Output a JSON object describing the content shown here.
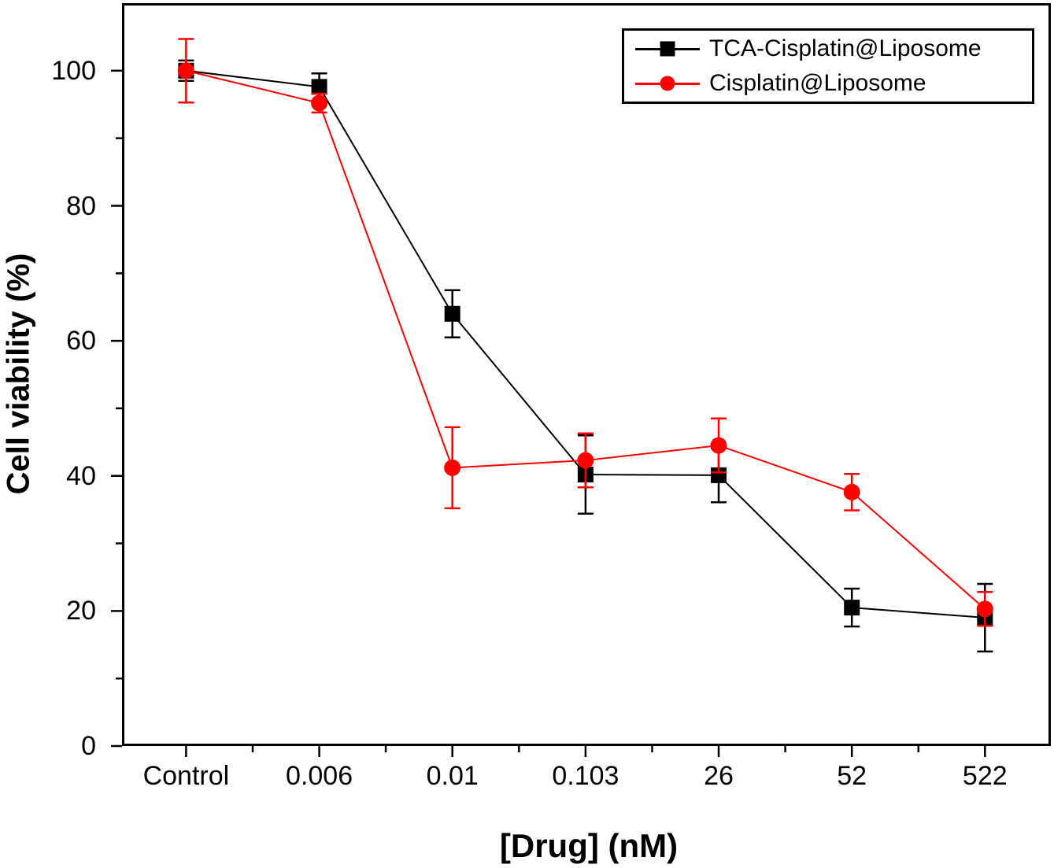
{
  "chart_data": {
    "type": "line",
    "title": "",
    "xlabel": "[Drug] (nM)",
    "ylabel": "Cell viability (%)",
    "categories": [
      "Control",
      "0.006",
      "0.01",
      "0.103",
      "26",
      "52",
      "522"
    ],
    "series": [
      {
        "name": "TCA-Cisplatin@Liposome",
        "color": "#000000",
        "marker": "square",
        "values": [
          100,
          97.6,
          64.0,
          40.2,
          40.1,
          20.5,
          19.0
        ],
        "errors": [
          1.5,
          2.0,
          3.5,
          5.8,
          4.0,
          2.8,
          5.0
        ]
      },
      {
        "name": "Cisplatin@Liposome",
        "color": "#ff0000",
        "marker": "circle",
        "values": [
          100,
          95.2,
          41.2,
          42.3,
          44.5,
          37.6,
          20.3
        ],
        "errors": [
          4.7,
          1.4,
          6.0,
          4.0,
          4.0,
          2.7,
          2.5
        ]
      }
    ],
    "ylim": [
      0,
      110
    ],
    "yticks": [
      0,
      20,
      40,
      60,
      80,
      100
    ],
    "yticks_minor": [
      10,
      30,
      50,
      70,
      90
    ],
    "x_minor_ticks": "between-categories",
    "legend_position": "top-right",
    "grid": false,
    "axis_color": "#000000",
    "background_color": "#ffffff"
  }
}
